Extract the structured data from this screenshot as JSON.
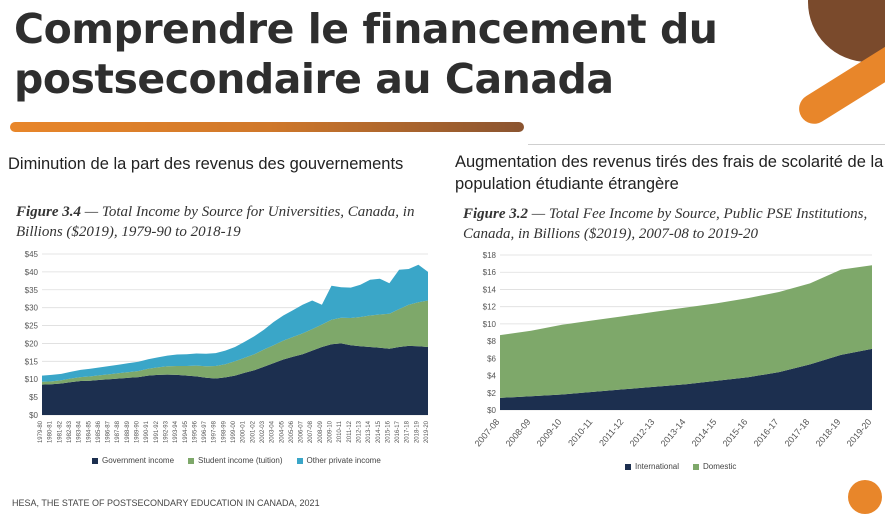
{
  "slide": {
    "title_line1": "Comprendre le financement du",
    "title_line2": "postsecondaire au Canada",
    "source": "HESA, THE STATE OF POSTSECONDARY EDUCATION IN CANADA, 2021"
  },
  "left_panel": {
    "heading": "Diminution de la part des revenus des gouvernements",
    "figure_label": "Figure 3.4",
    "figure_title_line1": " — Total Income by Source for Universities, Canada, in",
    "figure_title_line2": "Billions ($2019), 1979-90 to 2018-19"
  },
  "right_panel": {
    "heading_line1": "Augmentation des revenus tirés des frais de scolarité de la",
    "heading_line2": "population étudiante étrangère",
    "figure_label": "Figure 3.2",
    "figure_title_line1": " — Total Fee Income by Source, Public PSE Institutions,",
    "figure_title_line2": "Canada, in Billions ($2019), 2007-08 to 2019-20"
  },
  "colors": {
    "navy": "#1c2f4f",
    "green": "#7ea86a",
    "cyan": "#3aa6c8",
    "orange": "#e8862a",
    "brown": "#7a4a2c"
  },
  "chart_data": [
    {
      "type": "area",
      "stacked": true,
      "title": "Total Income by Source for Universities, Canada, in Billions ($2019), 1979-90 to 2018-19",
      "y_ticks": [
        "$0",
        "$5",
        "$10",
        "$15",
        "$20",
        "$25",
        "$30",
        "$35",
        "$40",
        "$45"
      ],
      "ylim": [
        0,
        45
      ],
      "grid": true,
      "legend_position": "bottom",
      "x": [
        "1979-80",
        "1980-81",
        "1981-82",
        "1982-83",
        "1983-84",
        "1984-85",
        "1985-86",
        "1986-87",
        "1987-88",
        "1988-89",
        "1989-90",
        "1990-91",
        "1991-92",
        "1992-93",
        "1993-94",
        "1994-95",
        "1995-96",
        "1996-97",
        "1997-98",
        "1998-99",
        "1999-00",
        "2000-01",
        "2001-02",
        "2002-03",
        "2003-04",
        "2004-05",
        "2005-06",
        "2006-07",
        "2007-08",
        "2008-09",
        "2009-10",
        "2010-11",
        "2011-12",
        "2012-13",
        "2013-14",
        "2014-15",
        "2015-16",
        "2016-17",
        "2017-18",
        "2018-19",
        "2019-20"
      ],
      "series": [
        {
          "name": "Government income",
          "color": "#1c2f4f",
          "values": [
            8.5,
            8.6,
            8.8,
            9.2,
            9.5,
            9.6,
            9.8,
            10.0,
            10.2,
            10.4,
            10.6,
            11.0,
            11.2,
            11.3,
            11.2,
            11.0,
            10.8,
            10.4,
            10.2,
            10.5,
            11.0,
            11.8,
            12.5,
            13.5,
            14.5,
            15.5,
            16.3,
            17.0,
            18.0,
            19.0,
            19.8,
            20.0,
            19.5,
            19.2,
            19.0,
            18.8,
            18.5,
            19.0,
            19.3,
            19.2,
            19.0
          ]
        },
        {
          "name": "Student income (tuition)",
          "color": "#7ea86a",
          "values": [
            0.8,
            0.8,
            0.9,
            1.0,
            1.1,
            1.2,
            1.3,
            1.4,
            1.5,
            1.6,
            1.7,
            1.9,
            2.1,
            2.3,
            2.5,
            2.7,
            3.0,
            3.2,
            3.5,
            3.7,
            4.0,
            4.2,
            4.5,
            4.8,
            5.0,
            5.3,
            5.5,
            5.8,
            6.0,
            6.3,
            6.8,
            7.2,
            7.6,
            8.2,
            8.8,
            9.3,
            9.8,
            10.6,
            11.5,
            12.3,
            13.0
          ]
        },
        {
          "name": "Other private income",
          "color": "#3aa6c8",
          "values": [
            1.7,
            1.8,
            1.8,
            1.9,
            2.0,
            2.1,
            2.2,
            2.3,
            2.4,
            2.5,
            2.6,
            2.7,
            2.8,
            3.0,
            3.2,
            3.3,
            3.4,
            3.5,
            3.6,
            3.8,
            4.0,
            4.5,
            5.0,
            5.5,
            6.5,
            7.0,
            7.5,
            8.0,
            8.0,
            5.5,
            9.5,
            8.5,
            8.5,
            9.0,
            10.0,
            10.0,
            8.5,
            11.0,
            10.0,
            10.5,
            8.0
          ]
        }
      ]
    },
    {
      "type": "area",
      "stacked": true,
      "title": "Total Fee Income by Source, Public PSE Institutions, Canada, in Billions ($2019), 2007-08 to 2019-20",
      "y_ticks": [
        "$0",
        "$2",
        "$4",
        "$6",
        "$8",
        "$10",
        "$12",
        "$14",
        "$16",
        "$18"
      ],
      "ylim": [
        0,
        18
      ],
      "grid": true,
      "legend_position": "bottom",
      "x": [
        "2007-08",
        "2008-09",
        "2009-10",
        "2010-11",
        "2011-12",
        "2012-13",
        "2013-14",
        "2014-15",
        "2015-16",
        "2016-17",
        "2017-18",
        "2018-19",
        "2019-20"
      ],
      "series": [
        {
          "name": "International",
          "color": "#1c2f4f",
          "values": [
            1.4,
            1.6,
            1.8,
            2.1,
            2.4,
            2.7,
            3.0,
            3.4,
            3.8,
            4.4,
            5.3,
            6.4,
            7.1
          ]
        },
        {
          "name": "Domestic",
          "color": "#7ea86a",
          "values": [
            7.3,
            7.6,
            8.1,
            8.3,
            8.5,
            8.7,
            8.9,
            9.0,
            9.2,
            9.3,
            9.4,
            9.9,
            9.7
          ]
        }
      ]
    }
  ]
}
